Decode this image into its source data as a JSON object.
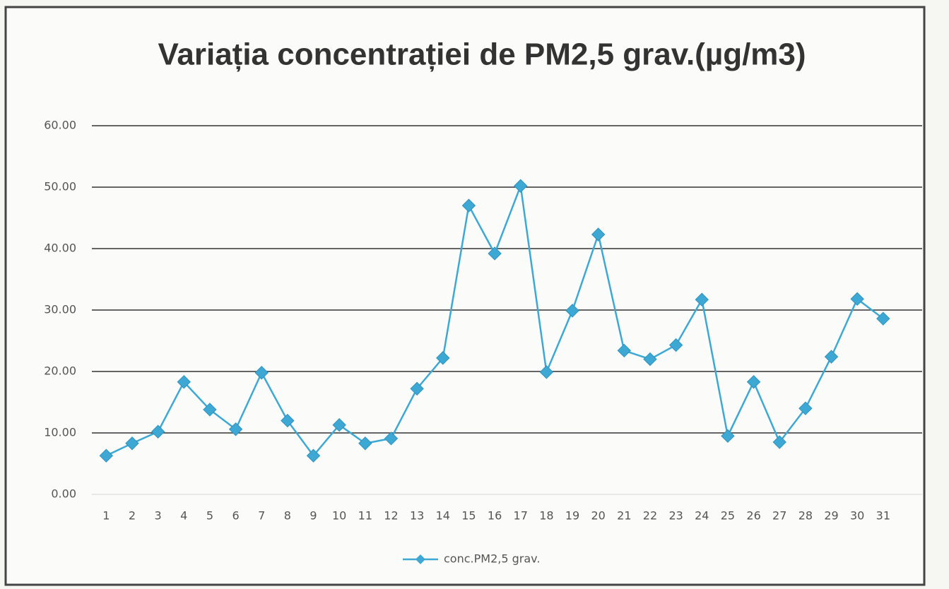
{
  "chart_data": {
    "type": "line",
    "title": "Variația concentrației de PM2,5 grav.(µg/m3)",
    "categories": [
      "1",
      "2",
      "3",
      "4",
      "5",
      "6",
      "7",
      "8",
      "9",
      "10",
      "11",
      "12",
      "13",
      "14",
      "15",
      "16",
      "17",
      "18",
      "19",
      "20",
      "21",
      "22",
      "23",
      "24",
      "25",
      "26",
      "27",
      "28",
      "29",
      "30",
      "31"
    ],
    "series": [
      {
        "name": "conc.PM2,5 grav.",
        "color": "#3ea8d4",
        "values": [
          6.3,
          8.3,
          10.2,
          18.3,
          13.8,
          10.6,
          19.8,
          12.0,
          6.3,
          11.3,
          8.3,
          9.1,
          17.2,
          22.2,
          47.0,
          39.2,
          50.2,
          19.9,
          29.9,
          42.3,
          23.4,
          22.0,
          24.3,
          31.7,
          9.5,
          18.3,
          8.5,
          14.0,
          22.4,
          31.8,
          28.6
        ]
      }
    ],
    "ylim": [
      0,
      60
    ],
    "yticks": [
      {
        "value": 0,
        "label": "0.00"
      },
      {
        "value": 10,
        "label": "10.00"
      },
      {
        "value": 20,
        "label": "20.00"
      },
      {
        "value": 30,
        "label": "30.00"
      },
      {
        "value": 40,
        "label": "40.00"
      },
      {
        "value": 50,
        "label": "50.00"
      },
      {
        "value": 60,
        "label": "60.00"
      }
    ],
    "grid": true,
    "legend": "bottom"
  }
}
